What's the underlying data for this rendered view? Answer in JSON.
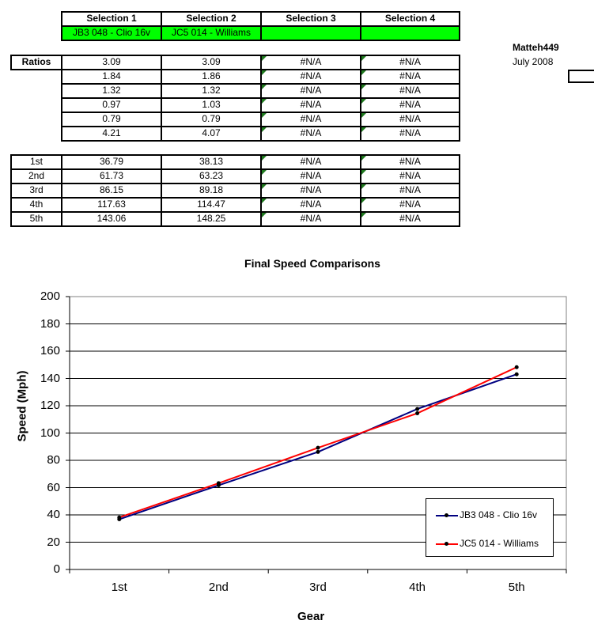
{
  "selection_table": {
    "headers": [
      "Selection 1",
      "Selection 2",
      "Selection 3",
      "Selection 4"
    ],
    "names": [
      "JB3 048 - Clio 16v",
      "JC5 014 - Williams",
      "",
      ""
    ],
    "highlight_color": "#00ff00"
  },
  "author": {
    "name": "Matteh449",
    "date": "July 2008"
  },
  "ratios_table": {
    "label": "Ratios",
    "rows": [
      [
        "3.09",
        "3.09",
        "#N/A",
        "#N/A"
      ],
      [
        "1.84",
        "1.86",
        "#N/A",
        "#N/A"
      ],
      [
        "1.32",
        "1.32",
        "#N/A",
        "#N/A"
      ],
      [
        "0.97",
        "1.03",
        "#N/A",
        "#N/A"
      ],
      [
        "0.79",
        "0.79",
        "#N/A",
        "#N/A"
      ],
      [
        "4.21",
        "4.07",
        "#N/A",
        "#N/A"
      ]
    ]
  },
  "speeds_table": {
    "rows": [
      {
        "gear": "1st",
        "values": [
          "36.79",
          "38.13",
          "#N/A",
          "#N/A"
        ]
      },
      {
        "gear": "2nd",
        "values": [
          "61.73",
          "63.23",
          "#N/A",
          "#N/A"
        ]
      },
      {
        "gear": "3rd",
        "values": [
          "86.15",
          "89.18",
          "#N/A",
          "#N/A"
        ]
      },
      {
        "gear": "4th",
        "values": [
          "117.63",
          "114.47",
          "#N/A",
          "#N/A"
        ]
      },
      {
        "gear": "5th",
        "values": [
          "143.06",
          "148.25",
          "#N/A",
          "#N/A"
        ]
      }
    ]
  },
  "chart_data": {
    "type": "line",
    "title": "Final Speed Comparisons",
    "xlabel": "Gear",
    "ylabel": "Speed (Mph)",
    "categories": [
      "1st",
      "2nd",
      "3rd",
      "4th",
      "5th"
    ],
    "series": [
      {
        "name": "JB3 048 - Clio 16v",
        "color": "#000080",
        "values": [
          36.79,
          61.73,
          86.15,
          117.63,
          143.06
        ]
      },
      {
        "name": "JC5 014 - Williams",
        "color": "#ff0000",
        "values": [
          38.13,
          63.23,
          89.18,
          114.47,
          148.25
        ]
      }
    ],
    "ylim": [
      0,
      200
    ],
    "yticks": [
      "0",
      "20",
      "40",
      "60",
      "80",
      "100",
      "120",
      "140",
      "160",
      "180",
      "200"
    ],
    "grid": true,
    "legend_position": "lower right"
  }
}
